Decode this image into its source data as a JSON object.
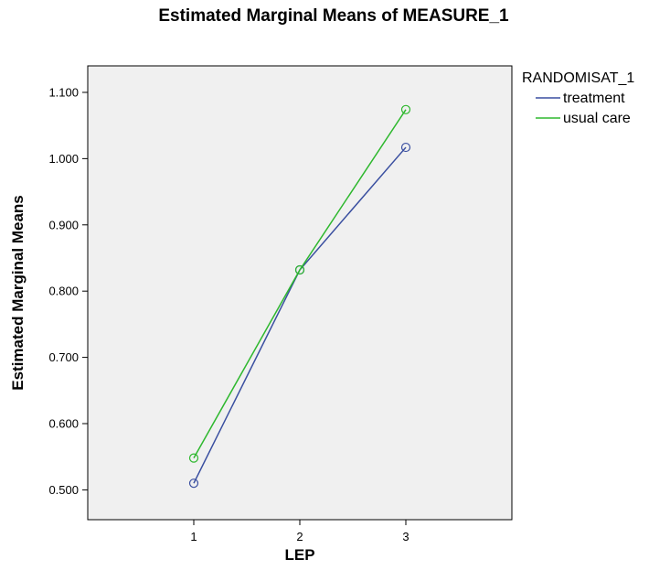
{
  "chart_data": {
    "type": "line",
    "title": "Estimated Marginal Means of MEASURE_1",
    "xlabel": "LEP",
    "ylabel": "Estimated Marginal Means",
    "categories": [
      "1",
      "2",
      "3"
    ],
    "y_ticks": [
      "0.500",
      "0.600",
      "0.700",
      "0.800",
      "0.900",
      "1.000",
      "1.100"
    ],
    "ylim": [
      0.455,
      1.14
    ],
    "grid": false,
    "legend_title": "RANDOMISAT_1",
    "legend_position": "right",
    "series": [
      {
        "name": "treatment",
        "color": "#3a4fa0",
        "values": [
          0.51,
          0.832,
          1.017
        ]
      },
      {
        "name": "usual care",
        "color": "#2eb82e",
        "values": [
          0.548,
          0.832,
          1.074
        ]
      }
    ]
  }
}
